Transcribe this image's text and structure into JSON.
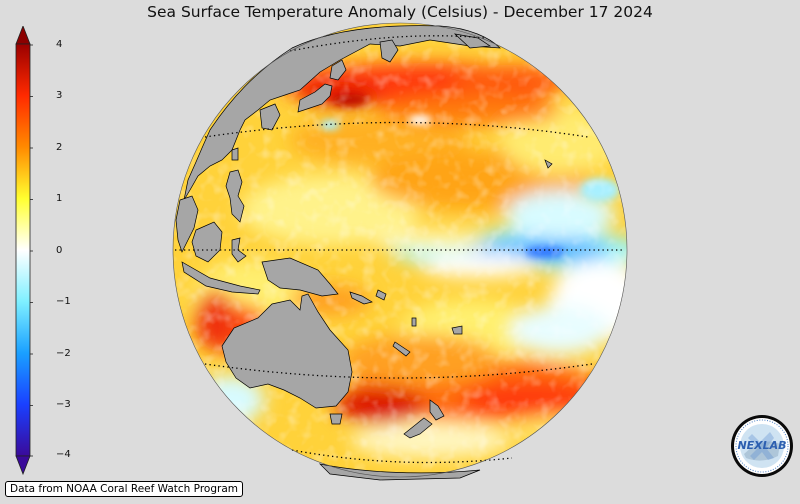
{
  "title": "Sea Surface Temperature Anomaly (Celsius) - December 17 2024",
  "colorbar": {
    "ticks": [
      "4",
      "3",
      "2",
      "1",
      "0",
      "−1",
      "−2",
      "−3",
      "−4"
    ],
    "min": -4,
    "max": 4,
    "extend": "both",
    "colors": [
      "#3a0a9a",
      "#1a3cff",
      "#1f9cff",
      "#7ff0ff",
      "#ffffff",
      "#ffff3a",
      "#ffb000",
      "#ff3a00",
      "#990000"
    ]
  },
  "map": {
    "projection": "orthographic",
    "land_color": "#a6a6a6",
    "gridlines": "dotted"
  },
  "credit": "Data from NOAA Coral Reef Watch Program",
  "logo": {
    "text": "NEXLAB",
    "icon": "nexlab-logo-icon"
  }
}
